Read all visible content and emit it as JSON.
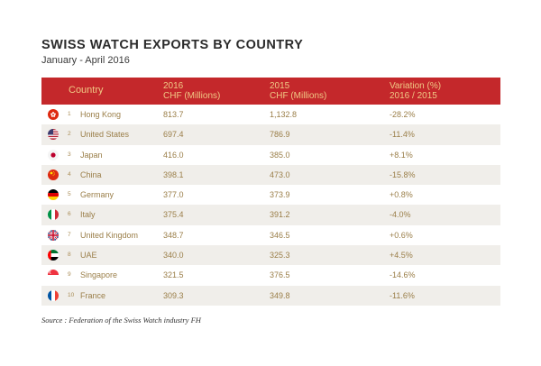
{
  "chart_data": {
    "type": "table",
    "title": "SWISS WATCH EXPORTS BY COUNTRY",
    "subtitle": "January - April 2016",
    "columns": [
      {
        "key": "country",
        "label": "Country"
      },
      {
        "key": "v2016",
        "label": [
          "2016",
          "CHF (Millions)"
        ]
      },
      {
        "key": "v2015",
        "label": [
          "2015",
          "CHF (Millions)"
        ]
      },
      {
        "key": "variation",
        "label": [
          "Variation (%)",
          "2016 / 2015"
        ]
      }
    ],
    "rows": [
      {
        "rank": "1",
        "country": "Hong Kong",
        "v2016": "813.7",
        "v2015": "1,132.8",
        "variation": "-28.2%",
        "flag": "hong-kong-flag-icon"
      },
      {
        "rank": "2",
        "country": "United States",
        "v2016": "697.4",
        "v2015": "786.9",
        "variation": "-11.4%",
        "flag": "united-states-flag-icon"
      },
      {
        "rank": "3",
        "country": "Japan",
        "v2016": "416.0",
        "v2015": "385.0",
        "variation": "+8.1%",
        "flag": "japan-flag-icon"
      },
      {
        "rank": "4",
        "country": "China",
        "v2016": "398.1",
        "v2015": "473.0",
        "variation": "-15.8%",
        "flag": "china-flag-icon"
      },
      {
        "rank": "5",
        "country": "Germany",
        "v2016": "377.0",
        "v2015": "373.9",
        "variation": "+0.8%",
        "flag": "germany-flag-icon"
      },
      {
        "rank": "6",
        "country": "Italy",
        "v2016": "375.4",
        "v2015": "391.2",
        "variation": "-4.0%",
        "flag": "italy-flag-icon"
      },
      {
        "rank": "7",
        "country": "United Kingdom",
        "v2016": "348.7",
        "v2015": "346.5",
        "variation": "+0.6%",
        "flag": "united-kingdom-flag-icon"
      },
      {
        "rank": "8",
        "country": "UAE",
        "v2016": "340.0",
        "v2015": "325.3",
        "variation": "+4.5%",
        "flag": "uae-flag-icon"
      },
      {
        "rank": "9",
        "country": "Singapore",
        "v2016": "321.5",
        "v2015": "376.5",
        "variation": "-14.6%",
        "flag": "singapore-flag-icon"
      },
      {
        "rank": "10",
        "country": "France",
        "v2016": "309.3",
        "v2015": "349.8",
        "variation": "-11.6%",
        "flag": "france-flag-icon"
      }
    ],
    "source": "Source : Federation of the Swiss Watch industry FH"
  },
  "colors": {
    "header_background": "#c4282b",
    "header_text": "#f0c985",
    "row_text": "#9a7e48",
    "alt_row_background": "#f0eeea"
  }
}
